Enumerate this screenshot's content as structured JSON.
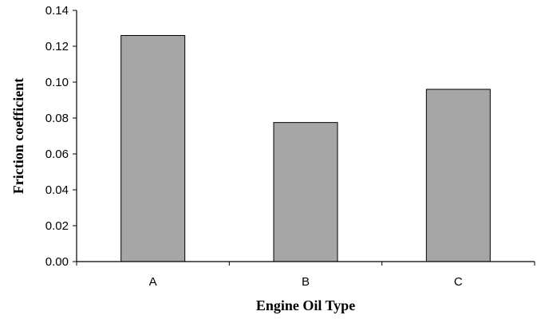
{
  "chart_data": {
    "type": "bar",
    "categories": [
      "A",
      "B",
      "C"
    ],
    "values": [
      0.126,
      0.0775,
      0.096
    ],
    "xlabel": "Engine Oil Type",
    "ylabel": "Friction coefficient",
    "ylim": [
      0,
      0.14
    ],
    "yticks": [
      "0.00",
      "0.02",
      "0.04",
      "0.06",
      "0.08",
      "0.10",
      "0.12",
      "0.14"
    ],
    "grid": false,
    "legend": "none",
    "colors": {
      "bar_fill": "#a6a6a6",
      "bar_stroke": "#000000",
      "axis": "#000000"
    }
  }
}
